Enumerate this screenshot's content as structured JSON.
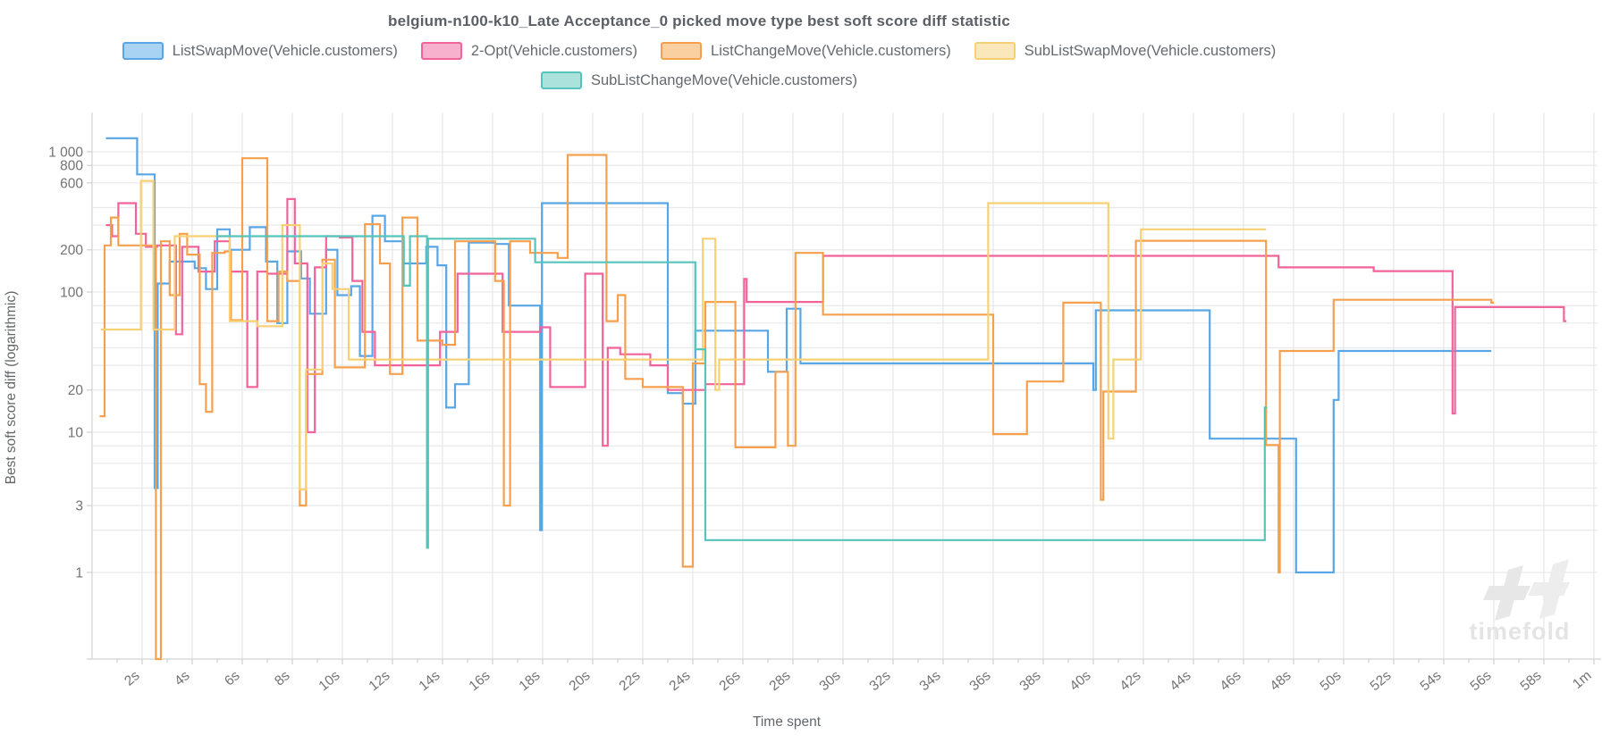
{
  "title": "belgium-n100-k10_Late Acceptance_0 picked move type best soft score diff statistic",
  "watermark": {
    "logo": "timefold-logo",
    "text": "timefold"
  },
  "legend": {
    "row_break": 4,
    "items": [
      {
        "label": "ListSwapMove(Vehicle.customers)",
        "color": "#58a6e6",
        "fill": "#a9d3f3"
      },
      {
        "label": "2-Opt(Vehicle.customers)",
        "color": "#f2639b",
        "fill": "#f8b1cd"
      },
      {
        "label": "ListChangeMove(Vehicle.customers)",
        "color": "#f6a04e",
        "fill": "#fbd0a0"
      },
      {
        "label": "SubListSwapMove(Vehicle.customers)",
        "color": "#f7d074",
        "fill": "#fbe8ba"
      },
      {
        "label": "SubListChangeMove(Vehicle.customers)",
        "color": "#56c4ba",
        "fill": "#abe2dc"
      }
    ]
  },
  "y_axis": {
    "title": "Best soft score diff (logarithmic)",
    "scale": "logarithmic",
    "tick_labels": [
      {
        "v": 1000,
        "label": "1 000"
      },
      {
        "v": 800,
        "label": "800"
      },
      {
        "v": 600,
        "label": "600"
      },
      {
        "v": 200,
        "label": "200"
      },
      {
        "v": 100,
        "label": "100"
      },
      {
        "v": 20,
        "label": "20"
      },
      {
        "v": 10,
        "label": "10"
      },
      {
        "v": 3,
        "label": "3"
      },
      {
        "v": 1,
        "label": "1"
      }
    ],
    "grid_values": [
      1,
      2,
      3,
      4,
      6,
      8,
      10,
      20,
      30,
      40,
      60,
      80,
      100,
      200,
      300,
      400,
      600,
      800,
      1000
    ]
  },
  "x_axis": {
    "title": "Time spent",
    "unit": "seconds",
    "max_t": 60,
    "ticks": [
      {
        "t": 2,
        "label": "2s"
      },
      {
        "t": 4,
        "label": "4s"
      },
      {
        "t": 6,
        "label": "6s"
      },
      {
        "t": 8,
        "label": "8s"
      },
      {
        "t": 10,
        "label": "10s"
      },
      {
        "t": 12,
        "label": "12s"
      },
      {
        "t": 14,
        "label": "14s"
      },
      {
        "t": 16,
        "label": "16s"
      },
      {
        "t": 18,
        "label": "18s"
      },
      {
        "t": 20,
        "label": "20s"
      },
      {
        "t": 22,
        "label": "22s"
      },
      {
        "t": 24,
        "label": "24s"
      },
      {
        "t": 26,
        "label": "26s"
      },
      {
        "t": 28,
        "label": "28s"
      },
      {
        "t": 30,
        "label": "30s"
      },
      {
        "t": 32,
        "label": "32s"
      },
      {
        "t": 34,
        "label": "34s"
      },
      {
        "t": 36,
        "label": "36s"
      },
      {
        "t": 38,
        "label": "38s"
      },
      {
        "t": 40,
        "label": "40s"
      },
      {
        "t": 42,
        "label": "42s"
      },
      {
        "t": 44,
        "label": "44s"
      },
      {
        "t": 46,
        "label": "46s"
      },
      {
        "t": 48,
        "label": "48s"
      },
      {
        "t": 50,
        "label": "50s"
      },
      {
        "t": 52,
        "label": "52s"
      },
      {
        "t": 54,
        "label": "54s"
      },
      {
        "t": 56,
        "label": "56s"
      },
      {
        "t": 58,
        "label": "58s"
      },
      {
        "t": 60,
        "label": "1m"
      }
    ]
  },
  "chart_data": {
    "type": "line",
    "stepped": true,
    "log_y": true,
    "title": "belgium-n100-k10_Late Acceptance_0 picked move type best soft score diff statistic",
    "xlabel": "Time spent",
    "ylabel": "Best soft score diff (logarithmic)",
    "x_range_seconds": [
      0,
      60
    ],
    "y_range": [
      1,
      1300
    ],
    "note": "points are [time_seconds, best_soft_score_diff]; values estimated from log gridlines; 0 = drop to axis floor",
    "series": [
      {
        "name": "ListSwapMove(Vehicle.customers)",
        "color": "#58a6e6",
        "points": [
          [
            0.55,
            1250
          ],
          [
            1.8,
            690
          ],
          [
            2.5,
            4
          ],
          [
            2.62,
            115
          ],
          [
            3.1,
            165
          ],
          [
            4.1,
            148
          ],
          [
            4.55,
            105
          ],
          [
            5.0,
            280
          ],
          [
            5.5,
            200
          ],
          [
            6.3,
            290
          ],
          [
            6.95,
            165
          ],
          [
            7.4,
            60
          ],
          [
            7.8,
            195
          ],
          [
            8.35,
            125
          ],
          [
            8.7,
            70
          ],
          [
            9.35,
            200
          ],
          [
            9.8,
            95
          ],
          [
            10.35,
            110
          ],
          [
            10.7,
            35
          ],
          [
            11.2,
            350
          ],
          [
            11.7,
            230
          ],
          [
            12.45,
            160
          ],
          [
            13.35,
            210
          ],
          [
            13.8,
            155
          ],
          [
            14.15,
            15
          ],
          [
            14.5,
            22
          ],
          [
            15.05,
            225
          ],
          [
            16.1,
            220
          ],
          [
            16.65,
            80
          ],
          [
            17.9,
            2
          ],
          [
            17.97,
            430
          ],
          [
            23.0,
            19
          ],
          [
            23.6,
            16
          ],
          [
            24.1,
            53
          ],
          [
            27.0,
            27
          ],
          [
            27.75,
            76
          ],
          [
            28.3,
            31
          ],
          [
            40.0,
            20
          ],
          [
            40.1,
            74
          ],
          [
            44.65,
            9
          ],
          [
            48.1,
            1
          ],
          [
            49.6,
            17
          ],
          [
            49.8,
            38
          ],
          [
            55.9,
            38
          ]
        ]
      },
      {
        "name": "2-Opt(Vehicle.customers)",
        "color": "#f2639b",
        "points": [
          [
            0.55,
            300
          ],
          [
            0.8,
            250
          ],
          [
            1.05,
            430
          ],
          [
            1.75,
            260
          ],
          [
            2.15,
            210
          ],
          [
            2.6,
            215
          ],
          [
            3.35,
            50
          ],
          [
            3.6,
            210
          ],
          [
            4.25,
            140
          ],
          [
            4.9,
            230
          ],
          [
            5.5,
            140
          ],
          [
            6.2,
            21
          ],
          [
            6.6,
            140
          ],
          [
            7.0,
            135
          ],
          [
            7.8,
            460
          ],
          [
            8.1,
            160
          ],
          [
            8.6,
            10
          ],
          [
            8.9,
            150
          ],
          [
            9.35,
            250
          ],
          [
            9.9,
            245
          ],
          [
            10.4,
            120
          ],
          [
            10.8,
            52
          ],
          [
            11.3,
            30
          ],
          [
            13.9,
            52
          ],
          [
            14.6,
            135
          ],
          [
            15.9,
            135
          ],
          [
            16.4,
            52
          ],
          [
            17.9,
            56
          ],
          [
            18.3,
            21
          ],
          [
            19.7,
            135
          ],
          [
            20.4,
            8
          ],
          [
            20.6,
            40
          ],
          [
            21.1,
            36
          ],
          [
            22.3,
            30
          ],
          [
            23.0,
            20
          ],
          [
            24.5,
            22
          ],
          [
            26.05,
            124
          ],
          [
            26.15,
            85
          ],
          [
            29.2,
            181
          ],
          [
            47.4,
            150
          ],
          [
            51.2,
            141
          ],
          [
            54.35,
            13.6
          ],
          [
            54.45,
            78
          ],
          [
            58.8,
            62
          ],
          [
            58.9,
            62
          ]
        ]
      },
      {
        "name": "ListChangeMove(Vehicle.customers)",
        "color": "#f6a04e",
        "points": [
          [
            0.3,
            13
          ],
          [
            0.5,
            215
          ],
          [
            0.75,
            340
          ],
          [
            1.05,
            215
          ],
          [
            2.55,
            0
          ],
          [
            2.75,
            230
          ],
          [
            3.1,
            95
          ],
          [
            3.5,
            260
          ],
          [
            3.8,
            185
          ],
          [
            4.3,
            22
          ],
          [
            4.55,
            14
          ],
          [
            4.8,
            190
          ],
          [
            5.3,
            195
          ],
          [
            5.55,
            63
          ],
          [
            6.0,
            900
          ],
          [
            6.9,
            900
          ],
          [
            7.0,
            62
          ],
          [
            7.45,
            140
          ],
          [
            7.8,
            120
          ],
          [
            8.3,
            3
          ],
          [
            8.55,
            26
          ],
          [
            9.2,
            170
          ],
          [
            9.7,
            29
          ],
          [
            10.9,
            305
          ],
          [
            11.5,
            160
          ],
          [
            11.9,
            26
          ],
          [
            12.4,
            340
          ],
          [
            13.0,
            45
          ],
          [
            14.0,
            42
          ],
          [
            14.5,
            230
          ],
          [
            15.4,
            230
          ],
          [
            16.1,
            120
          ],
          [
            16.45,
            3
          ],
          [
            16.7,
            230
          ],
          [
            17.5,
            190
          ],
          [
            18.6,
            175
          ],
          [
            19.0,
            950
          ],
          [
            20.55,
            62
          ],
          [
            21.0,
            95
          ],
          [
            21.3,
            24
          ],
          [
            22.0,
            21
          ],
          [
            23.6,
            1.1
          ],
          [
            24.0,
            31
          ],
          [
            24.5,
            85
          ],
          [
            25.7,
            7.8
          ],
          [
            27.3,
            27
          ],
          [
            27.8,
            8
          ],
          [
            28.1,
            190
          ],
          [
            29.2,
            69
          ],
          [
            36.0,
            9.7
          ],
          [
            37.35,
            23
          ],
          [
            38.8,
            84
          ],
          [
            40.3,
            3.3
          ],
          [
            40.4,
            19.5
          ],
          [
            41.7,
            232
          ],
          [
            46.9,
            8.1
          ],
          [
            47.4,
            1
          ],
          [
            47.45,
            38
          ],
          [
            49.6,
            88
          ],
          [
            55.9,
            84
          ],
          [
            56.0,
            84
          ]
        ]
      },
      {
        "name": "SubListSwapMove(Vehicle.customers)",
        "color": "#f7d074",
        "points": [
          [
            0.35,
            54
          ],
          [
            1.95,
            620
          ],
          [
            2.45,
            54
          ],
          [
            3.3,
            250
          ],
          [
            5.5,
            62
          ],
          [
            6.6,
            57
          ],
          [
            7.6,
            300
          ],
          [
            8.3,
            3.9
          ],
          [
            8.55,
            28
          ],
          [
            9.2,
            160
          ],
          [
            9.6,
            105
          ],
          [
            10.25,
            33
          ],
          [
            24.4,
            240
          ],
          [
            24.9,
            20
          ],
          [
            25.05,
            33
          ],
          [
            28.6,
            33
          ],
          [
            35.8,
            430
          ],
          [
            40.6,
            9
          ],
          [
            40.8,
            33
          ],
          [
            41.9,
            280
          ],
          [
            46.9,
            280
          ]
        ]
      },
      {
        "name": "SubListChangeMove(Vehicle.customers)",
        "color": "#56c4ba",
        "points": [
          [
            4.95,
            250
          ],
          [
            12.45,
            111
          ],
          [
            12.7,
            250
          ],
          [
            13.38,
            1.5
          ],
          [
            13.42,
            240
          ],
          [
            17.7,
            163
          ],
          [
            24.1,
            39
          ],
          [
            24.5,
            1.7
          ],
          [
            46.85,
            15
          ],
          [
            46.95,
            15
          ]
        ]
      }
    ]
  }
}
